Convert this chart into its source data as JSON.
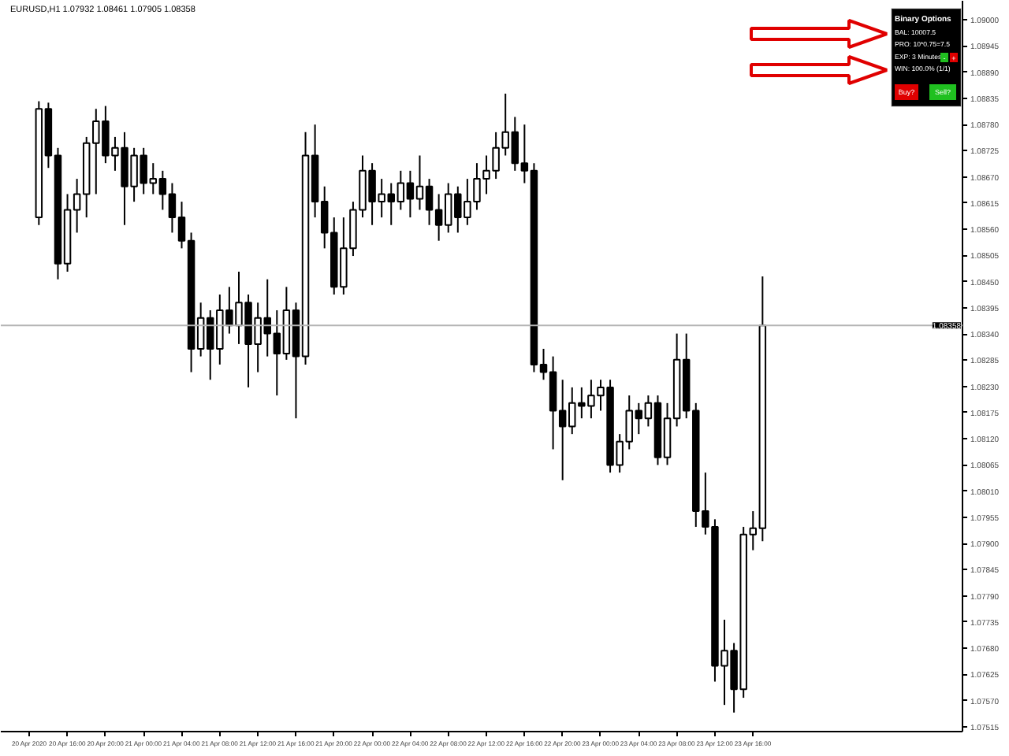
{
  "chart_data": {
    "type": "candlestick",
    "title": "EURUSD,H1 1.07932 1.08461 1.07905 1.08358",
    "x": [
      "2020-04-20T13:00",
      "2020-04-20T14:00",
      "2020-04-20T15:00",
      "2020-04-20T16:00",
      "2020-04-20T17:00",
      "2020-04-20T18:00",
      "2020-04-20T19:00",
      "2020-04-20T20:00",
      "2020-04-20T21:00",
      "2020-04-20T22:00",
      "2020-04-20T23:00",
      "2020-04-21T00:00",
      "2020-04-21T01:00",
      "2020-04-21T02:00",
      "2020-04-21T03:00",
      "2020-04-21T04:00",
      "2020-04-21T05:00",
      "2020-04-21T06:00",
      "2020-04-21T07:00",
      "2020-04-21T08:00",
      "2020-04-21T09:00",
      "2020-04-21T10:00",
      "2020-04-21T11:00",
      "2020-04-21T12:00",
      "2020-04-21T13:00",
      "2020-04-21T14:00",
      "2020-04-21T15:00",
      "2020-04-21T16:00",
      "2020-04-21T17:00",
      "2020-04-21T18:00",
      "2020-04-21T19:00",
      "2020-04-21T20:00",
      "2020-04-21T21:00",
      "2020-04-21T22:00",
      "2020-04-21T23:00",
      "2020-04-22T00:00",
      "2020-04-22T01:00",
      "2020-04-22T02:00",
      "2020-04-22T03:00",
      "2020-04-22T04:00",
      "2020-04-22T05:00",
      "2020-04-22T06:00",
      "2020-04-22T07:00",
      "2020-04-22T08:00",
      "2020-04-22T09:00",
      "2020-04-22T10:00",
      "2020-04-22T11:00",
      "2020-04-22T12:00",
      "2020-04-22T13:00",
      "2020-04-22T14:00",
      "2020-04-22T15:00",
      "2020-04-22T16:00",
      "2020-04-22T17:00",
      "2020-04-22T18:00",
      "2020-04-22T19:00",
      "2020-04-22T20:00",
      "2020-04-22T21:00",
      "2020-04-22T22:00",
      "2020-04-22T23:00",
      "2020-04-23T00:00",
      "2020-04-23T01:00",
      "2020-04-23T02:00",
      "2020-04-23T03:00",
      "2020-04-23T04:00",
      "2020-04-23T05:00",
      "2020-04-23T06:00",
      "2020-04-23T07:00",
      "2020-04-23T08:00",
      "2020-04-23T09:00",
      "2020-04-23T10:00",
      "2020-04-23T11:00",
      "2020-04-23T12:00",
      "2020-04-23T13:00",
      "2020-04-23T14:00",
      "2020-04-23T15:00",
      "2020-04-23T16:00",
      "2020-04-23T17:00"
    ],
    "ohlc": [
      [
        1.08585,
        1.08829,
        1.08569,
        1.08813
      ],
      [
        1.08813,
        1.08826,
        1.08689,
        1.08715
      ],
      [
        1.08715,
        1.08731,
        1.08455,
        1.08488
      ],
      [
        1.08488,
        1.08634,
        1.08471,
        1.08601
      ],
      [
        1.08601,
        1.08666,
        1.08553,
        1.08634
      ],
      [
        1.08634,
        1.08754,
        1.08585,
        1.08741
      ],
      [
        1.08741,
        1.08813,
        1.08634,
        1.08787
      ],
      [
        1.08787,
        1.08819,
        1.08699,
        1.08715
      ],
      [
        1.08715,
        1.08754,
        1.08683,
        1.08731
      ],
      [
        1.08731,
        1.08764,
        1.08569,
        1.0865
      ],
      [
        1.0865,
        1.08731,
        1.08618,
        1.08715
      ],
      [
        1.08715,
        1.08731,
        1.08634,
        1.08657
      ],
      [
        1.08657,
        1.08699,
        1.08634,
        1.08666
      ],
      [
        1.08666,
        1.08683,
        1.08601,
        1.08634
      ],
      [
        1.08634,
        1.08657,
        1.08553,
        1.08585
      ],
      [
        1.08585,
        1.08618,
        1.0852,
        1.08536
      ],
      [
        1.08536,
        1.08553,
        1.0826,
        1.08309
      ],
      [
        1.08309,
        1.08406,
        1.08293,
        1.08374
      ],
      [
        1.08374,
        1.0839,
        1.08244,
        1.08309
      ],
      [
        1.08309,
        1.08423,
        1.08276,
        1.0839
      ],
      [
        1.0839,
        1.08439,
        1.08341,
        1.08358
      ],
      [
        1.08358,
        1.08471,
        1.08319,
        1.08406
      ],
      [
        1.08406,
        1.08423,
        1.08228,
        1.08319
      ],
      [
        1.08319,
        1.08406,
        1.0826,
        1.08374
      ],
      [
        1.08374,
        1.08455,
        1.08293,
        1.08341
      ],
      [
        1.08341,
        1.0839,
        1.08211,
        1.08299
      ],
      [
        1.08299,
        1.08439,
        1.08286,
        1.0839
      ],
      [
        1.0839,
        1.08406,
        1.08163,
        1.08293
      ],
      [
        1.08293,
        1.08764,
        1.08276,
        1.08715
      ],
      [
        1.08715,
        1.0878,
        1.08585,
        1.08618
      ],
      [
        1.08618,
        1.0865,
        1.0852,
        1.08553
      ],
      [
        1.08553,
        1.08585,
        1.08423,
        1.08439
      ],
      [
        1.08439,
        1.08585,
        1.08423,
        1.0852
      ],
      [
        1.0852,
        1.08618,
        1.08504,
        1.08601
      ],
      [
        1.08601,
        1.08715,
        1.08585,
        1.08683
      ],
      [
        1.08683,
        1.08699,
        1.08569,
        1.08618
      ],
      [
        1.08618,
        1.08666,
        1.08585,
        1.08634
      ],
      [
        1.08634,
        1.08657,
        1.08569,
        1.08618
      ],
      [
        1.08618,
        1.08683,
        1.08601,
        1.08657
      ],
      [
        1.08657,
        1.08683,
        1.08585,
        1.08624
      ],
      [
        1.08624,
        1.08715,
        1.08601,
        1.0865
      ],
      [
        1.0865,
        1.08666,
        1.08569,
        1.08601
      ],
      [
        1.08601,
        1.08634,
        1.08536,
        1.08569
      ],
      [
        1.08569,
        1.08657,
        1.08553,
        1.08634
      ],
      [
        1.08634,
        1.0865,
        1.08553,
        1.08585
      ],
      [
        1.08585,
        1.08666,
        1.08569,
        1.08618
      ],
      [
        1.08618,
        1.08699,
        1.08601,
        1.08666
      ],
      [
        1.08666,
        1.08715,
        1.08634,
        1.08683
      ],
      [
        1.08683,
        1.08764,
        1.08666,
        1.08731
      ],
      [
        1.08731,
        1.08845,
        1.08715,
        1.08764
      ],
      [
        1.08764,
        1.08796,
        1.08683,
        1.08699
      ],
      [
        1.08699,
        1.0878,
        1.08657,
        1.08683
      ],
      [
        1.08683,
        1.08699,
        1.0826,
        1.08276
      ],
      [
        1.08276,
        1.08309,
        1.08244,
        1.0826
      ],
      [
        1.0826,
        1.08293,
        1.08098,
        1.08179
      ],
      [
        1.08179,
        1.08244,
        1.08033,
        1.08146
      ],
      [
        1.08146,
        1.08228,
        1.0813,
        1.08195
      ],
      [
        1.08195,
        1.08228,
        1.08163,
        1.08189
      ],
      [
        1.08189,
        1.08244,
        1.08163,
        1.08211
      ],
      [
        1.08211,
        1.08244,
        1.08179,
        1.08228
      ],
      [
        1.08228,
        1.08244,
        1.08049,
        1.08065
      ],
      [
        1.08065,
        1.0813,
        1.08049,
        1.08114
      ],
      [
        1.08114,
        1.08211,
        1.08098,
        1.08179
      ],
      [
        1.08179,
        1.08195,
        1.0813,
        1.08163
      ],
      [
        1.08163,
        1.08211,
        1.08146,
        1.08195
      ],
      [
        1.08195,
        1.08211,
        1.08065,
        1.08081
      ],
      [
        1.08081,
        1.08195,
        1.08065,
        1.08163
      ],
      [
        1.08163,
        1.08341,
        1.08146,
        1.08286
      ],
      [
        1.08286,
        1.08341,
        1.08163,
        1.08179
      ],
      [
        1.08179,
        1.08195,
        1.07935,
        1.07968
      ],
      [
        1.07968,
        1.08049,
        1.07919,
        1.07935
      ],
      [
        1.07935,
        1.07951,
        1.0761,
        1.07643
      ],
      [
        1.07643,
        1.0774,
        1.07561,
        1.07675
      ],
      [
        1.07675,
        1.07691,
        1.07545,
        1.07594
      ],
      [
        1.07594,
        1.07935,
        1.07576,
        1.07919
      ],
      [
        1.07919,
        1.07968,
        1.07886,
        1.07932
      ],
      [
        1.07932,
        1.08461,
        1.07905,
        1.08358
      ]
    ],
    "xlim": [
      "2020-04-20T09:00",
      "2020-04-24T14:00"
    ],
    "xticks": [
      {
        "value": "2020-04-20T12:00",
        "label": "20 Apr 2020"
      },
      {
        "value": "2020-04-20T16:00",
        "label": "20 Apr 16:00"
      },
      {
        "value": "2020-04-20T20:00",
        "label": "20 Apr 20:00"
      },
      {
        "value": "2020-04-21T00:00",
        "label": "21 Apr 00:00"
      },
      {
        "value": "2020-04-21T04:00",
        "label": "21 Apr 04:00"
      },
      {
        "value": "2020-04-21T08:00",
        "label": "21 Apr 08:00"
      },
      {
        "value": "2020-04-21T12:00",
        "label": "21 Apr 12:00"
      },
      {
        "value": "2020-04-21T16:00",
        "label": "21 Apr 16:00"
      },
      {
        "value": "2020-04-21T20:00",
        "label": "21 Apr 20:00"
      },
      {
        "value": "2020-04-22T00:00",
        "label": "22 Apr 00:00"
      },
      {
        "value": "2020-04-22T04:00",
        "label": "22 Apr 04:00"
      },
      {
        "value": "2020-04-22T08:00",
        "label": "22 Apr 08:00"
      },
      {
        "value": "2020-04-22T12:00",
        "label": "22 Apr 12:00"
      },
      {
        "value": "2020-04-22T16:00",
        "label": "22 Apr 16:00"
      },
      {
        "value": "2020-04-22T20:00",
        "label": "22 Apr 20:00"
      },
      {
        "value": "2020-04-23T00:00",
        "label": "23 Apr 00:00"
      },
      {
        "value": "2020-04-23T04:00",
        "label": "23 Apr 04:00"
      },
      {
        "value": "2020-04-23T08:00",
        "label": "23 Apr 08:00"
      },
      {
        "value": "2020-04-23T12:00",
        "label": "23 Apr 12:00"
      },
      {
        "value": "2020-04-23T16:00",
        "label": "23 Apr 16:00"
      }
    ],
    "ylim": [
      1.07505,
      1.0904
    ],
    "yticks": [
      1.07515,
      {
        "value": 1.0757,
        "label": "1.07570"
      },
      1.07625,
      {
        "value": 1.0768,
        "label": "1.07680"
      },
      1.07735,
      {
        "value": 1.0779,
        "label": "1.07790"
      },
      1.07845,
      {
        "value": 1.079,
        "label": "1.07900"
      },
      1.07955,
      {
        "value": 1.0801,
        "label": "1.08010"
      },
      1.08065,
      {
        "value": 1.0812,
        "label": "1.08120"
      },
      1.08175,
      {
        "value": 1.0823,
        "label": "1.08230"
      },
      1.08285,
      {
        "value": 1.0834,
        "label": "1.08340"
      },
      1.08395,
      {
        "value": 1.0845,
        "label": "1.08450"
      },
      1.08505,
      {
        "value": 1.0856,
        "label": "1.08560"
      },
      1.08615,
      {
        "value": 1.0867,
        "label": "1.08670"
      },
      1.08725,
      {
        "value": 1.0878,
        "label": "1.08780"
      },
      1.08835,
      {
        "value": 1.0889,
        "label": "1.08890"
      },
      1.08945,
      {
        "value": 1.09,
        "label": "1.09000"
      }
    ],
    "ref_lines": [
      {
        "axis": "y",
        "value": 1.08358,
        "label": "1.08358"
      }
    ],
    "annotations": [
      "Binary Options",
      "BAL: 10007.5",
      "PRO: 10*0.75=7.5",
      "EXP: 3 Minutes",
      "WIN: 100.0% (1/1)",
      "Buy?",
      "Sell?",
      "-",
      "+"
    ]
  }
}
